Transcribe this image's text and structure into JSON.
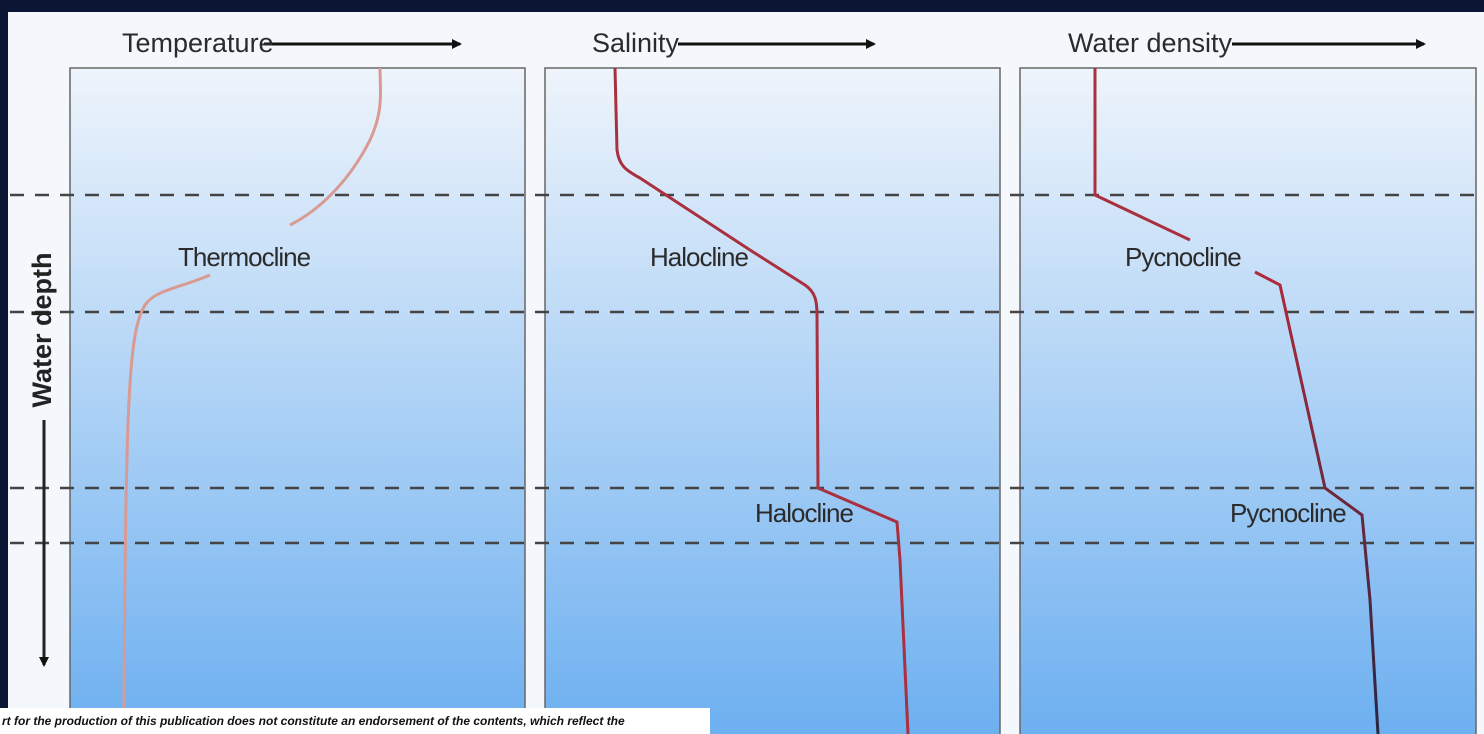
{
  "panels": [
    {
      "title": "Temperature",
      "labels": [
        "Thermocline"
      ]
    },
    {
      "title": "Salinity",
      "labels": [
        "Halocline",
        "Halocline"
      ]
    },
    {
      "title": "Water density",
      "labels": [
        "Pycnocline",
        "Pycnocline"
      ]
    }
  ],
  "axis_label": "Water depth",
  "footer": "rt for the production of this publication does not constitute an endorsement of the contents, which reflect the"
}
